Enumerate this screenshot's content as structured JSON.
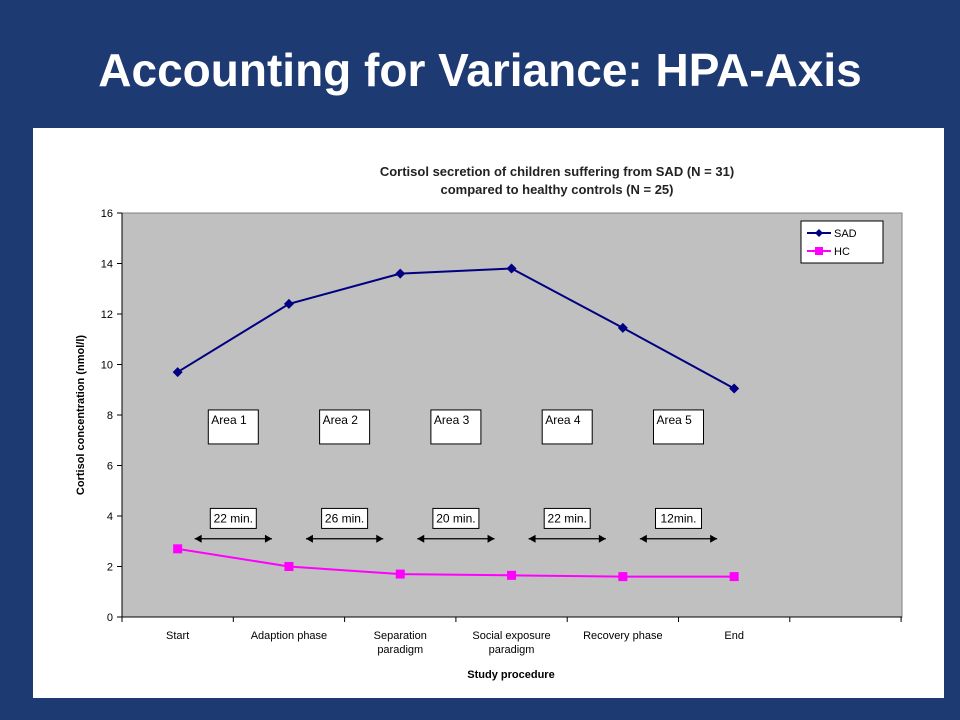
{
  "slide": {
    "title": "Accounting for Variance: HPA-Axis",
    "background": "#1d3a73"
  },
  "chart_data": {
    "type": "line",
    "title_lines": [
      "Cortisol secretion of children suffering from SAD (N = 31)",
      "compared to healthy controls (N = 25)"
    ],
    "xlabel": "Study procedure",
    "ylabel": "Cortisol concentration (nmol/l)",
    "ylim": [
      0,
      16
    ],
    "yticks": [
      0,
      2,
      4,
      6,
      8,
      10,
      12,
      14,
      16
    ],
    "categories": [
      [
        "Start"
      ],
      [
        "Adaption phase"
      ],
      [
        "Separation",
        "paradigm"
      ],
      [
        "Social exposure",
        "paradigm"
      ],
      [
        "Recovery phase"
      ],
      [
        "End"
      ]
    ],
    "grid": false,
    "plot_background": "#c0c0c0",
    "legend_position": "top-right",
    "series": [
      {
        "name": "SAD",
        "values": [
          9.7,
          12.4,
          13.6,
          13.8,
          11.45,
          9.05
        ],
        "color": "#000080",
        "marker": "diamond"
      },
      {
        "name": "HC",
        "values": [
          2.7,
          2.0,
          1.7,
          1.65,
          1.6,
          1.6
        ],
        "color": "#ff00ff",
        "marker": "square"
      }
    ],
    "areas": [
      "Area 1",
      "Area 2",
      "Area 3",
      "Area 4",
      "Area 5"
    ],
    "durations": [
      "22 min.",
      "26 min.",
      "20 min.",
      "22 min.",
      "12min."
    ]
  }
}
